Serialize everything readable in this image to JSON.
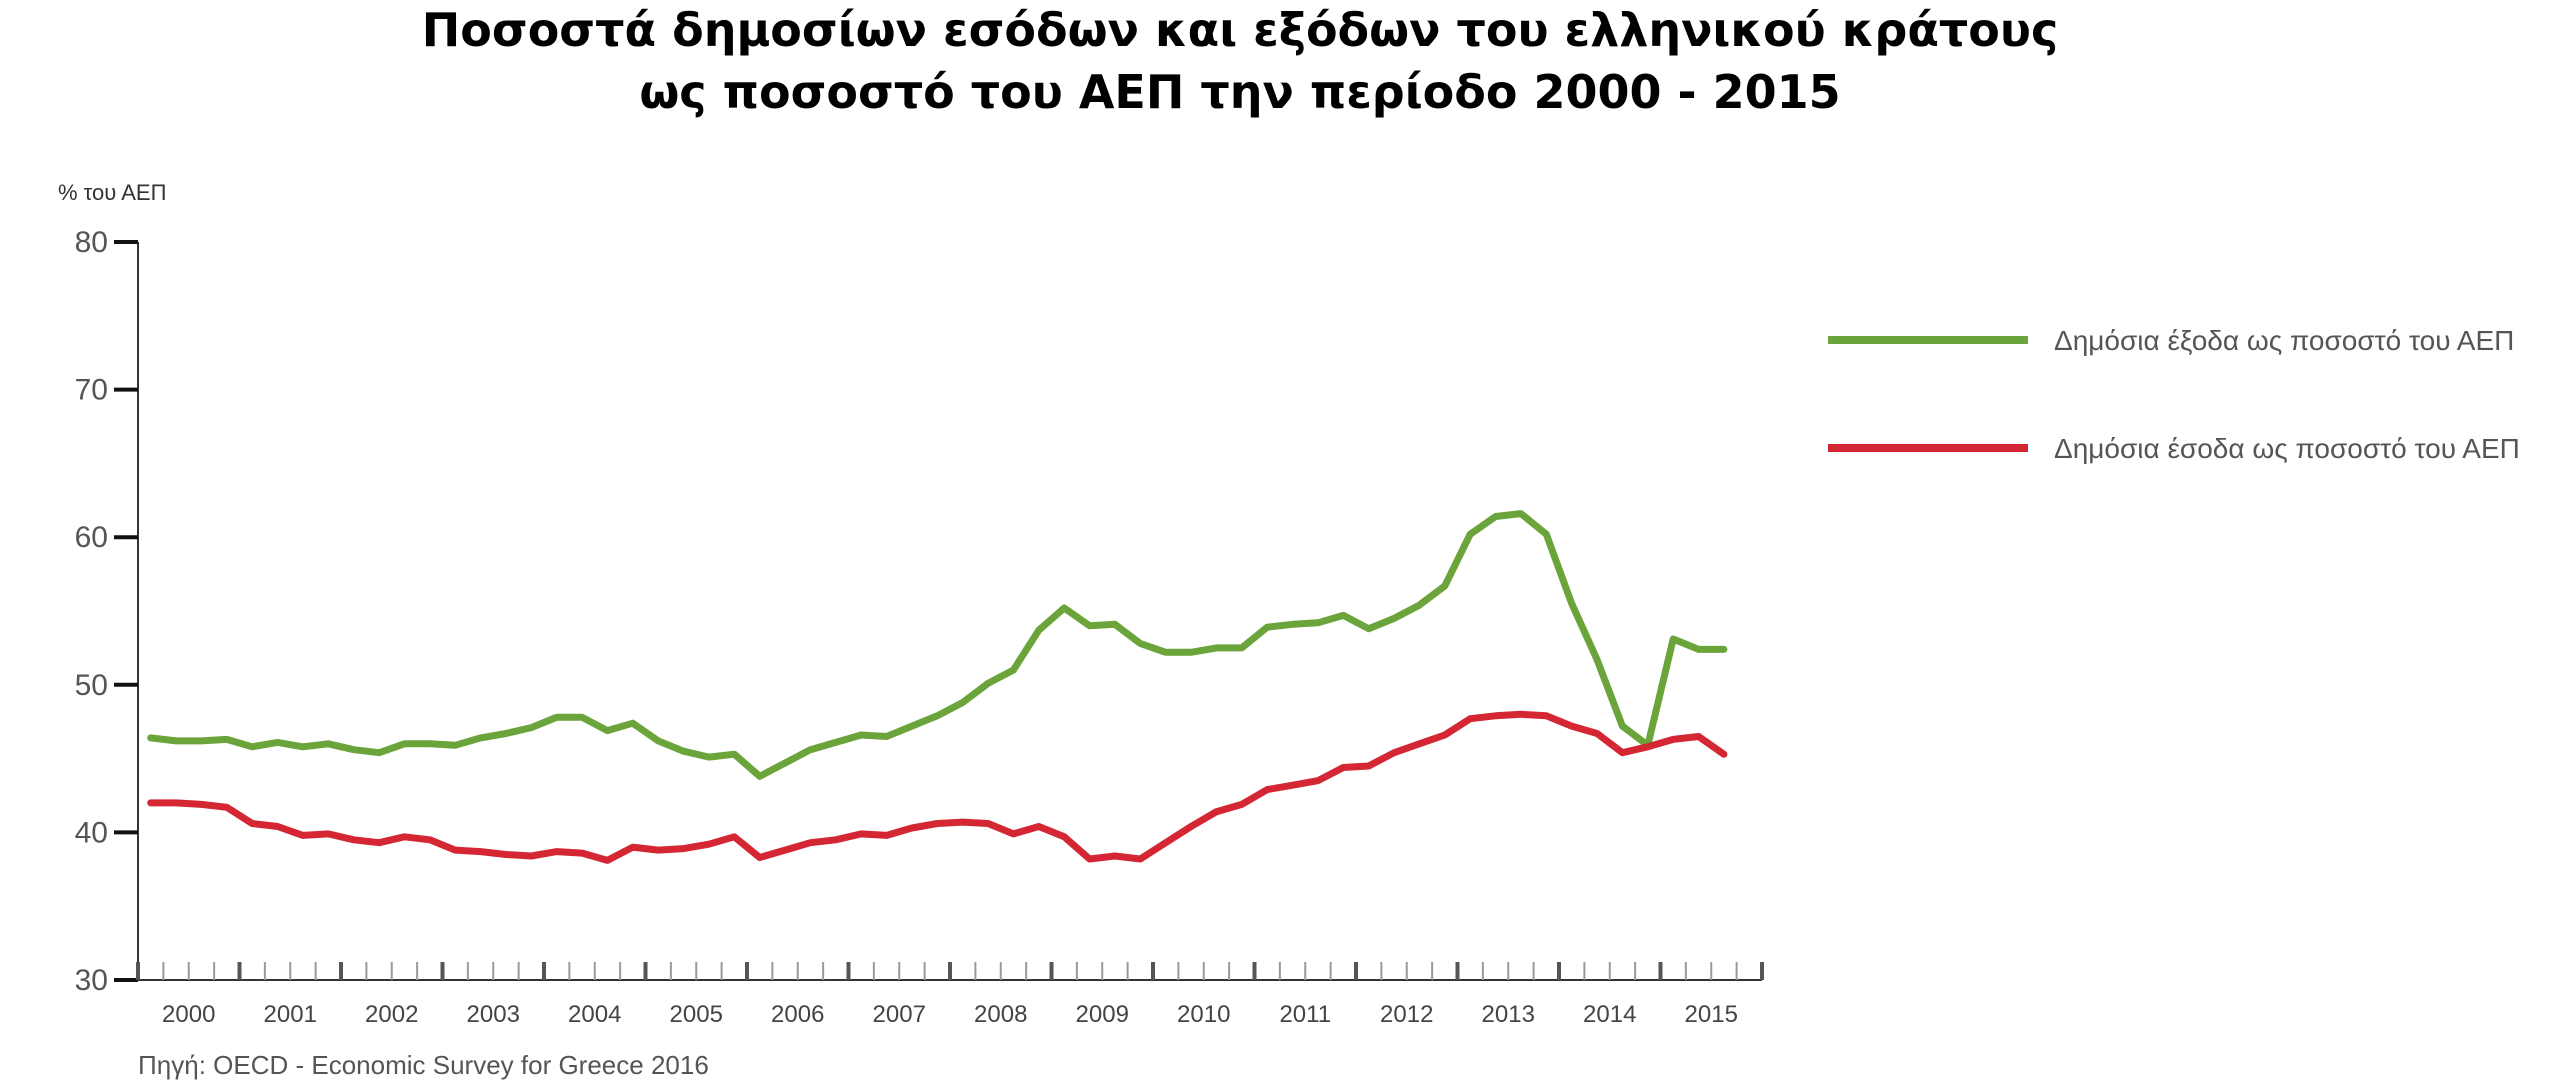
{
  "title_lines": [
    "Ποσοστά δημοσίων εσόδων και εξόδων του ελληνικού κράτους",
    "ως ποσοστό του ΑΕΠ την περίοδο 2000 - 2015"
  ],
  "y_unit_label": "% του ΑΕΠ",
  "source": "Πηγή: OECD - Economic Survey for Greece 2016",
  "chart_data": {
    "type": "line",
    "title": "Ποσοστά δημοσίων εσόδων και εξόδων του ελληνικού κράτους ως ποσοστό του ΑΕΠ την περίοδο 2000 - 2015",
    "ylabel": "% του ΑΕΠ",
    "xlabel": "",
    "ylim": [
      30,
      80
    ],
    "yticks": [
      30,
      40,
      50,
      60,
      70,
      80
    ],
    "xlim": [
      2000.0,
      2016.0
    ],
    "years": [
      "2000",
      "2001",
      "2002",
      "2003",
      "2004",
      "2005",
      "2006",
      "2007",
      "2008",
      "2009",
      "2010",
      "2011",
      "2012",
      "2013",
      "2014",
      "2015"
    ],
    "legend_position": "right",
    "grid": false,
    "x": [
      2000.125,
      2000.375,
      2000.625,
      2000.875,
      2001.125,
      2001.375,
      2001.625,
      2001.875,
      2002.125,
      2002.375,
      2002.625,
      2002.875,
      2003.125,
      2003.375,
      2003.625,
      2003.875,
      2004.125,
      2004.375,
      2004.625,
      2004.875,
      2005.125,
      2005.375,
      2005.625,
      2005.875,
      2006.125,
      2006.375,
      2006.625,
      2006.875,
      2007.125,
      2007.375,
      2007.625,
      2007.875,
      2008.125,
      2008.375,
      2008.625,
      2008.875,
      2009.125,
      2009.375,
      2009.625,
      2009.875,
      2010.125,
      2010.375,
      2010.625,
      2010.875,
      2011.125,
      2011.375,
      2011.625,
      2011.875,
      2012.125,
      2012.375,
      2012.625,
      2012.875,
      2013.125,
      2013.375,
      2013.625,
      2013.875,
      2014.125,
      2014.375,
      2014.625,
      2014.875,
      2015.125,
      2015.375,
      2015.625
    ],
    "series": [
      {
        "name": "Δημόσια έξοδα ως ποσοστό του ΑΕΠ",
        "color": "#6aa43a",
        "values": [
          46.4,
          46.2,
          46.2,
          46.3,
          45.8,
          46.1,
          45.8,
          46.0,
          45.6,
          45.4,
          46.0,
          46.0,
          45.9,
          46.4,
          46.7,
          47.1,
          47.8,
          47.8,
          46.9,
          47.4,
          46.2,
          45.5,
          45.1,
          45.3,
          43.8,
          44.7,
          45.6,
          46.1,
          46.6,
          46.5,
          47.2,
          47.9,
          48.8,
          50.1,
          51.0,
          53.7,
          55.2,
          54.0,
          54.1,
          52.8,
          52.2,
          52.2,
          52.5,
          52.5,
          53.9,
          54.1,
          54.2,
          54.7,
          53.8,
          54.5,
          55.4,
          56.7,
          60.2,
          61.4,
          61.6,
          60.2,
          55.5,
          51.7,
          47.2,
          45.9,
          53.1,
          52.4,
          52.4
        ]
      },
      {
        "name": "Δημόσια έσοδα ως ποσοστό του ΑΕΠ",
        "color": "#d42633",
        "values": [
          42.0,
          42.0,
          41.9,
          41.7,
          40.6,
          40.4,
          39.8,
          39.9,
          39.5,
          39.3,
          39.7,
          39.5,
          38.8,
          38.7,
          38.5,
          38.4,
          38.7,
          38.6,
          38.1,
          39.0,
          38.8,
          38.9,
          39.2,
          39.7,
          38.3,
          38.8,
          39.3,
          39.5,
          39.9,
          39.8,
          40.3,
          40.6,
          40.7,
          40.6,
          39.9,
          40.4,
          39.7,
          38.2,
          38.4,
          38.2,
          39.3,
          40.4,
          41.4,
          41.9,
          42.9,
          43.2,
          43.5,
          44.4,
          44.5,
          45.4,
          46.0,
          46.6,
          47.7,
          47.9,
          48.0,
          47.9,
          47.2,
          46.7,
          45.4,
          45.8,
          46.3,
          46.5,
          45.3
        ]
      }
    ]
  }
}
